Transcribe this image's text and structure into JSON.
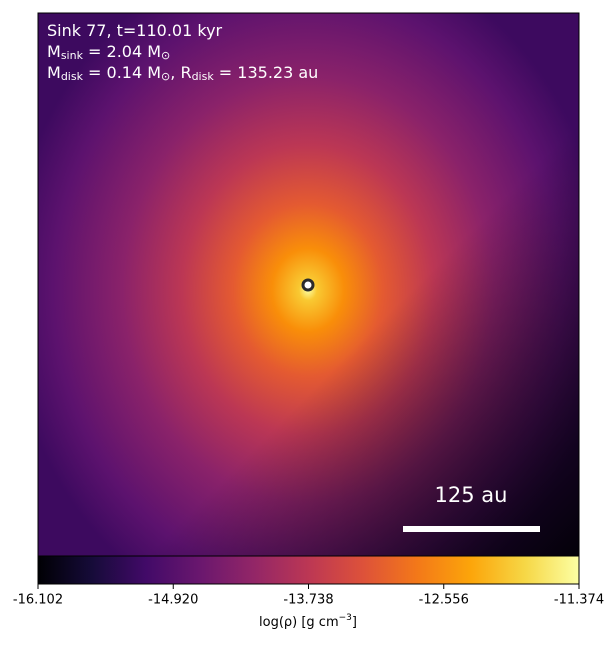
{
  "chart_data": {
    "type": "density-map",
    "annotation_lines": [
      [
        "Sink 77, t=110.01 kyr"
      ],
      [
        "M",
        "sink",
        " = 2.04 M",
        "⊙"
      ],
      [
        "M",
        "disk",
        " = 0.14 M",
        "⊙",
        ", R",
        "disk",
        " = 135.23 au"
      ]
    ],
    "scale_bar_label": "125 au",
    "colormap": "inferno",
    "colorbar": {
      "xlim": [
        -16.102,
        -11.374
      ],
      "xticks": [
        -16.102,
        {
          "value": -14.92,
          "label": "-14.920"
        },
        -13.738,
        -12.556,
        -11.374
      ],
      "label_parts": [
        "log(ρ) [g cm",
        "−3",
        "]"
      ]
    }
  }
}
